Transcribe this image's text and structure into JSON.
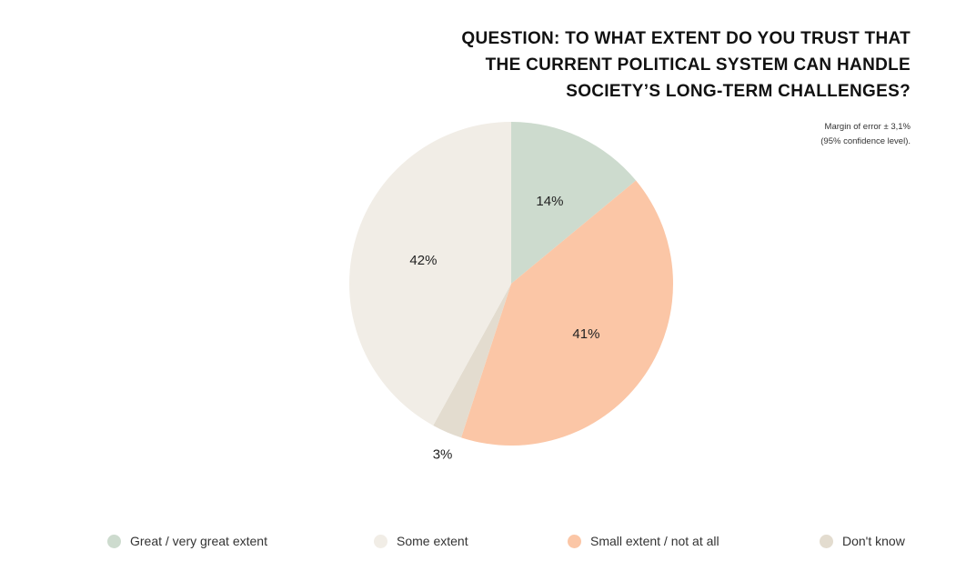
{
  "chart_data": {
    "type": "pie",
    "title_lines": [
      "QUESTION: TO WHAT EXTENT DO YOU TRUST THAT",
      "THE CURRENT POLITICAL SYSTEM CAN HANDLE",
      "SOCIETY’S LONG-TERM CHALLENGES?"
    ],
    "note_lines": [
      "Margin of error ± 3,1%",
      "(95% confidence level)."
    ],
    "slices": [
      {
        "label": "Great / very great extent",
        "value": 14,
        "data_label": "14%",
        "color": "#cddbce"
      },
      {
        "label": "Small extent / not at all",
        "value": 41,
        "data_label": "41%",
        "color": "#fbc6a6"
      },
      {
        "label": "Don't know",
        "value": 3,
        "data_label": "3%",
        "color": "#e3dccf"
      },
      {
        "label": "Some extent",
        "value": 42,
        "data_label": "42%",
        "color": "#f1ede6"
      }
    ],
    "legend": [
      {
        "label": "Great / very great extent",
        "color": "#cddbce"
      },
      {
        "label": "Some extent",
        "color": "#f1ede6"
      },
      {
        "label": "Small extent / not at all",
        "color": "#fbc6a6"
      },
      {
        "label": "Don't know",
        "color": "#e3dccf"
      }
    ],
    "legend_position": "bottom",
    "start_angle": "12 o'clock",
    "direction": "clockwise"
  }
}
